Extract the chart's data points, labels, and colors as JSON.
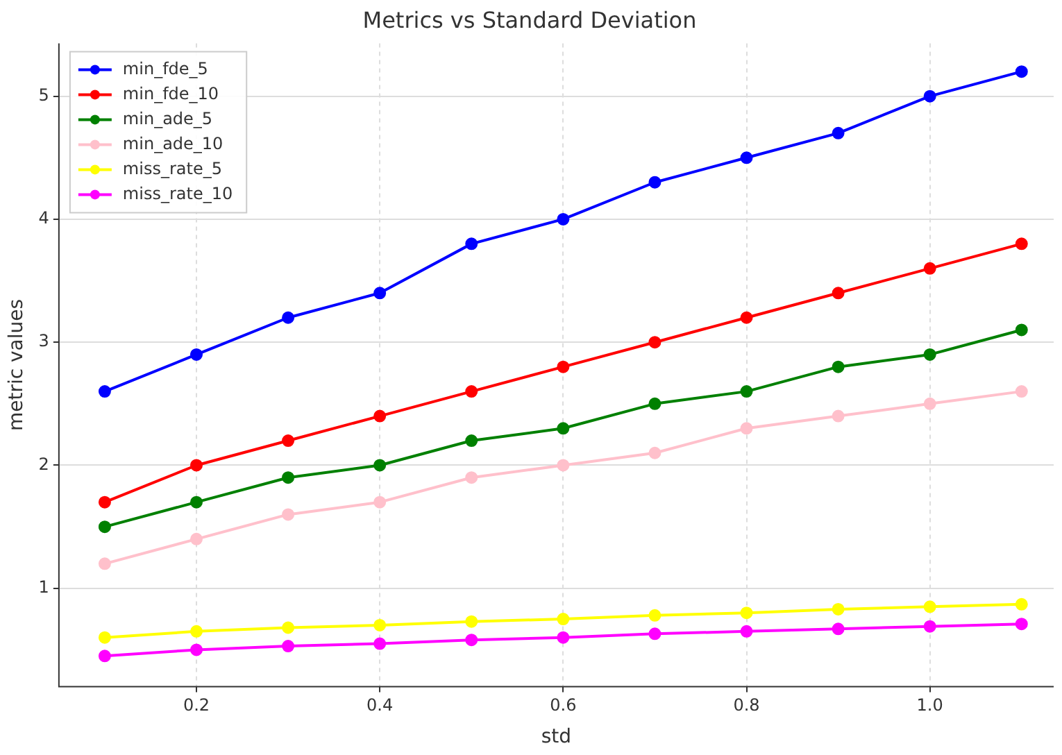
{
  "chart_data": {
    "type": "line",
    "title": "Metrics vs Standard Deviation",
    "xlabel": "std",
    "ylabel": "metric values",
    "x": [
      0.1,
      0.2,
      0.3,
      0.4,
      0.5,
      0.6,
      0.7,
      0.8,
      0.9,
      1.0,
      1.1
    ],
    "xlim": [
      0.05,
      1.135
    ],
    "xticks": [
      {
        "value": 0.2,
        "label": "0.2"
      },
      {
        "value": 0.4,
        "label": "0.4"
      },
      {
        "value": 0.6,
        "label": "0.6"
      },
      {
        "value": 0.8,
        "label": "0.8"
      },
      {
        "value": 1.0,
        "label": "1.0"
      }
    ],
    "ylim": [
      0.2,
      5.43
    ],
    "yticks": [
      1,
      2,
      3,
      4,
      5
    ],
    "grid": true,
    "legend": "top left",
    "marker": "circle",
    "line_style": "solid",
    "series": [
      {
        "name": "min_fde_5",
        "color": "#0000ff",
        "values": [
          2.6,
          2.9,
          3.2,
          3.4,
          3.8,
          4.0,
          4.3,
          4.5,
          4.7,
          5.0,
          5.2
        ]
      },
      {
        "name": "min_fde_10",
        "color": "#ff0000",
        "values": [
          1.7,
          2.0,
          2.2,
          2.4,
          2.6,
          2.8,
          3.0,
          3.2,
          3.4,
          3.6,
          3.8
        ]
      },
      {
        "name": "min_ade_5",
        "color": "#008000",
        "values": [
          1.5,
          1.7,
          1.9,
          2.0,
          2.2,
          2.3,
          2.5,
          2.6,
          2.8,
          2.9,
          3.1
        ]
      },
      {
        "name": "min_ade_10",
        "color": "#ffc0cb",
        "values": [
          1.2,
          1.4,
          1.6,
          1.7,
          1.9,
          2.0,
          2.1,
          2.3,
          2.4,
          2.5,
          2.6
        ]
      },
      {
        "name": "miss_rate_5",
        "color": "#ffff00",
        "values": [
          0.6,
          0.65,
          0.68,
          0.7,
          0.73,
          0.75,
          0.78,
          0.8,
          0.83,
          0.85,
          0.87
        ]
      },
      {
        "name": "miss_rate_10",
        "color": "#ff00ff",
        "values": [
          0.45,
          0.5,
          0.53,
          0.55,
          0.58,
          0.6,
          0.63,
          0.65,
          0.67,
          0.69,
          0.71
        ]
      }
    ]
  }
}
